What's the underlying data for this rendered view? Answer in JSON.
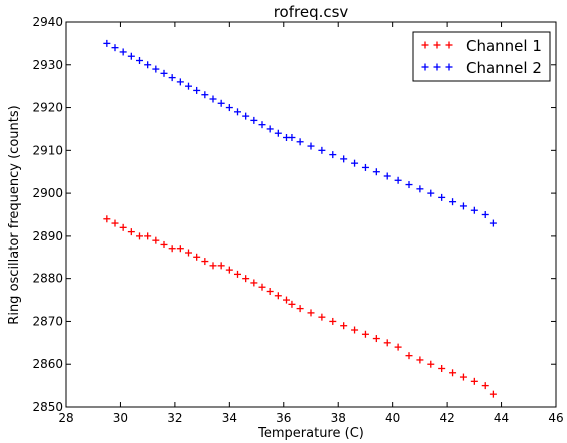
{
  "chart_data": {
    "type": "scatter",
    "title": "rofreq.csv",
    "xlabel": "Temperature (C)",
    "ylabel": "Ring oscillator frequency (counts)",
    "xlim": [
      28,
      46
    ],
    "ylim": [
      2850,
      2940
    ],
    "xticks": [
      28,
      30,
      32,
      34,
      36,
      38,
      40,
      42,
      44,
      46
    ],
    "yticks": [
      2850,
      2860,
      2870,
      2880,
      2890,
      2900,
      2910,
      2920,
      2930,
      2940
    ],
    "grid": false,
    "legend_position": "top-right",
    "marker": "+",
    "series": [
      {
        "name": "Channel 1",
        "color": "#ff0000",
        "x": [
          29.5,
          29.8,
          30.1,
          30.4,
          30.7,
          31.0,
          31.3,
          31.6,
          31.9,
          32.2,
          32.5,
          32.8,
          33.1,
          33.4,
          33.7,
          34.0,
          34.3,
          34.6,
          34.9,
          35.2,
          35.5,
          35.8,
          36.1,
          36.3,
          36.6,
          37.0,
          37.4,
          37.8,
          38.2,
          38.6,
          39.0,
          39.4,
          39.8,
          40.2,
          40.6,
          41.0,
          41.4,
          41.8,
          42.2,
          42.6,
          43.0,
          43.4,
          43.7
        ],
        "y": [
          2894,
          2893,
          2892,
          2891,
          2890,
          2890,
          2889,
          2888,
          2887,
          2887,
          2886,
          2885,
          2884,
          2883,
          2883,
          2882,
          2881,
          2880,
          2879,
          2878,
          2877,
          2876,
          2875,
          2874,
          2873,
          2872,
          2871,
          2870,
          2869,
          2868,
          2867,
          2866,
          2865,
          2864,
          2862,
          2861,
          2860,
          2859,
          2858,
          2857,
          2856,
          2855,
          2853
        ]
      },
      {
        "name": "Channel 2",
        "color": "#0000ff",
        "x": [
          29.5,
          29.8,
          30.1,
          30.4,
          30.7,
          31.0,
          31.3,
          31.6,
          31.9,
          32.2,
          32.5,
          32.8,
          33.1,
          33.4,
          33.7,
          34.0,
          34.3,
          34.6,
          34.9,
          35.2,
          35.5,
          35.8,
          36.1,
          36.3,
          36.6,
          37.0,
          37.4,
          37.8,
          38.2,
          38.6,
          39.0,
          39.4,
          39.8,
          40.2,
          40.6,
          41.0,
          41.4,
          41.8,
          42.2,
          42.6,
          43.0,
          43.4,
          43.7
        ],
        "y": [
          2935,
          2934,
          2933,
          2932,
          2931,
          2930,
          2929,
          2928,
          2927,
          2926,
          2925,
          2924,
          2923,
          2922,
          2921,
          2920,
          2919,
          2918,
          2917,
          2916,
          2915,
          2914,
          2913,
          2913,
          2912,
          2911,
          2910,
          2909,
          2908,
          2907,
          2906,
          2905,
          2904,
          2903,
          2902,
          2901,
          2900,
          2899,
          2898,
          2897,
          2896,
          2895,
          2893
        ]
      }
    ]
  }
}
